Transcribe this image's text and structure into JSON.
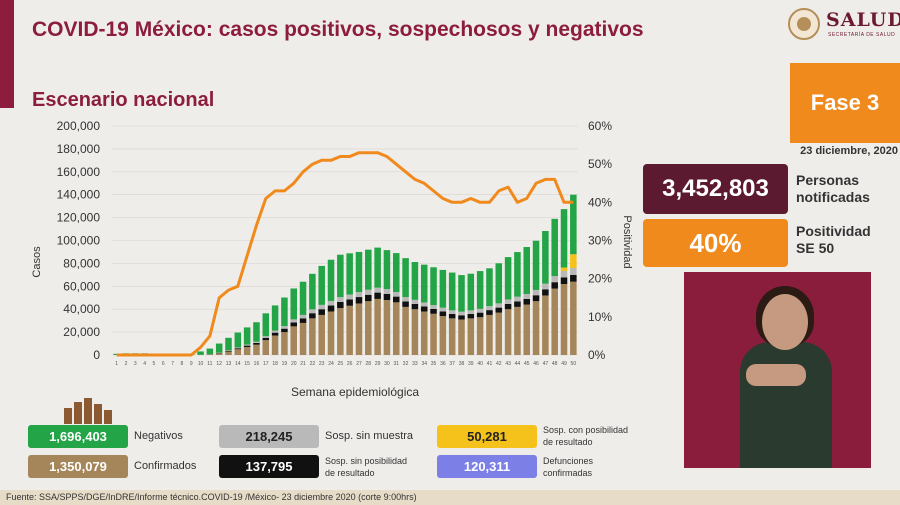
{
  "header": {
    "title": "COVID-19 México: casos positivos, sospechosos y negativos",
    "subtitle": "Escenario nacional",
    "logo_text": "SALUD",
    "logo_subtext": "SECRETARÍA DE SALUD"
  },
  "side": {
    "phase": "Fase 3",
    "date": "23 diciembre, 2020",
    "notified_value": "3,452,803",
    "notified_label_1": "Personas",
    "notified_label_2": "notificadas",
    "positivity_value": "40%",
    "positivity_label_1": "Positividad",
    "positivity_label_2": "SE 50"
  },
  "legend": {
    "negativos_value": "1,696,403",
    "negativos_label": "Negativos",
    "confirmados_value": "1,350,079",
    "confirmados_label": "Confirmados",
    "sin_muestra_value": "218,245",
    "sin_muestra_label": "Sosp. sin muestra",
    "sin_posibilidad_value": "137,795",
    "sin_posibilidad_label_1": "Sosp. sin posibilidad",
    "sin_posibilidad_label_2": "de resultado",
    "con_posibilidad_value": "50,281",
    "con_posibilidad_label_1": "Sosp. con posibilidad",
    "con_posibilidad_label_2": "de resultado",
    "defunciones_value": "120,311",
    "defunciones_label_1": "Defunciones",
    "defunciones_label_2": "confirmadas"
  },
  "footer": {
    "source": "Fuente: SSA/SPPS/DGE/InDRE/Informe técnico.COVID-19 /México- 23 diciembre 2020 (corte 9:00hrs)"
  },
  "colors": {
    "confirmados": "#a5865a",
    "sin_posibilidad": "#111111",
    "sin_muestra": "#b9b9b9",
    "negativos": "#23a446",
    "con_posibilidad": "#f5c21b",
    "positividad": "#f08a1c",
    "accent": "#8c1d3c"
  },
  "chart_data": {
    "type": "bar",
    "xlabel": "Semana epidemiológica",
    "ylabel": "Casos",
    "y2label": "Positividad",
    "ylim": [
      0,
      200000
    ],
    "y2lim": [
      0,
      60
    ],
    "yticks": [
      "0",
      "20,000",
      "40,000",
      "60,000",
      "80,000",
      "100,000",
      "120,000",
      "140,000",
      "160,000",
      "180,000",
      "200,000"
    ],
    "y2ticks": [
      "0%",
      "10%",
      "20%",
      "30%",
      "40%",
      "50%",
      "60%"
    ],
    "categories": [
      "1",
      "2",
      "3",
      "4",
      "5",
      "6",
      "7",
      "8",
      "9",
      "10",
      "11",
      "12",
      "13",
      "14",
      "15",
      "16",
      "17",
      "18",
      "19",
      "20",
      "21",
      "22",
      "23",
      "24",
      "25",
      "26",
      "27",
      "28",
      "29",
      "30",
      "31",
      "32",
      "33",
      "34",
      "35",
      "36",
      "37",
      "38",
      "39",
      "40",
      "41",
      "42",
      "43",
      "44",
      "45",
      "46",
      "47",
      "48",
      "49",
      "50"
    ],
    "series": [
      {
        "name": "Confirmados",
        "values": [
          0,
          0,
          0,
          0,
          0,
          0,
          0,
          0,
          0,
          100,
          400,
          1500,
          3000,
          5000,
          7000,
          9000,
          13000,
          17000,
          20000,
          25000,
          28000,
          32000,
          35000,
          38000,
          41000,
          43000,
          45000,
          47000,
          49000,
          48000,
          46000,
          42000,
          40000,
          38000,
          36000,
          34000,
          32000,
          31000,
          32000,
          33000,
          35000,
          37000,
          40000,
          42000,
          44000,
          47000,
          52000,
          58000,
          62000,
          64000
        ]
      },
      {
        "name": "Sosp. sin posibilidad de resultado",
        "values": [
          0,
          0,
          0,
          0,
          0,
          0,
          0,
          0,
          0,
          0,
          100,
          300,
          600,
          900,
          1200,
          1500,
          2000,
          2500,
          3000,
          3500,
          4000,
          4500,
          5000,
          5200,
          5400,
          5500,
          5600,
          5600,
          5500,
          5400,
          5000,
          4800,
          4600,
          4400,
          4200,
          4000,
          3800,
          3700,
          3800,
          4000,
          4200,
          4400,
          4600,
          4800,
          5000,
          5200,
          5400,
          5600,
          5800,
          6000
        ]
      },
      {
        "name": "Sosp. sin muestra",
        "values": [
          0,
          0,
          0,
          0,
          0,
          0,
          0,
          0,
          0,
          0,
          100,
          200,
          400,
          700,
          900,
          1100,
          1400,
          1800,
          2200,
          2600,
          3000,
          3400,
          3800,
          4000,
          4200,
          4300,
          4400,
          4400,
          4300,
          4200,
          4000,
          3800,
          3600,
          3500,
          3400,
          3300,
          3200,
          3100,
          3200,
          3300,
          3500,
          3700,
          3900,
          4100,
          4300,
          4600,
          4900,
          5300,
          5600,
          6000
        ]
      },
      {
        "name": "Sosp. con posibilidad de resultado",
        "values": [
          0,
          0,
          0,
          0,
          0,
          0,
          0,
          0,
          0,
          0,
          0,
          0,
          0,
          0,
          0,
          0,
          0,
          0,
          0,
          0,
          0,
          0,
          0,
          0,
          0,
          0,
          0,
          0,
          0,
          0,
          0,
          0,
          0,
          0,
          0,
          0,
          0,
          0,
          0,
          0,
          0,
          0,
          0,
          0,
          0,
          0,
          0,
          0,
          3000,
          12000
        ]
      },
      {
        "name": "Negativos",
        "values": [
          1000,
          1500,
          1500,
          1500,
          1200,
          1000,
          1000,
          800,
          1000,
          3000,
          5000,
          8000,
          11000,
          13000,
          15000,
          17000,
          20000,
          22000,
          25000,
          27000,
          29000,
          31000,
          34000,
          36000,
          37000,
          36000,
          35000,
          35000,
          35000,
          34000,
          34000,
          34000,
          33000,
          33000,
          33000,
          33000,
          33000,
          32000,
          32000,
          33000,
          33000,
          35000,
          37000,
          39000,
          41000,
          43000,
          46000,
          50000,
          51000,
          52000
        ]
      },
      {
        "name": "Positividad",
        "axis": "right",
        "values": [
          0,
          0,
          0,
          0,
          0,
          0,
          0,
          0,
          0,
          2,
          5,
          15,
          17,
          18,
          26,
          34,
          41,
          43,
          43,
          45,
          48,
          50,
          51,
          51,
          52,
          52,
          53,
          53,
          53,
          52,
          50,
          48,
          46,
          45,
          43,
          41,
          40,
          40,
          41,
          40,
          40,
          43,
          44,
          40,
          41,
          45,
          46,
          46,
          40,
          40
        ]
      }
    ]
  }
}
